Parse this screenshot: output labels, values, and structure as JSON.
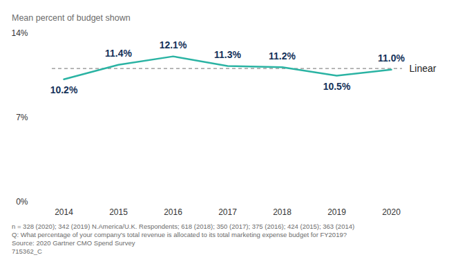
{
  "chart_data": {
    "type": "line",
    "ylabel": "Mean percent of budget shown",
    "categories": [
      "2014",
      "2015",
      "2016",
      "2017",
      "2018",
      "2019",
      "2020"
    ],
    "values": [
      10.2,
      11.4,
      12.1,
      11.3,
      11.2,
      10.5,
      11.0
    ],
    "value_labels": [
      "10.2%",
      "11.4%",
      "12.1%",
      "11.3%",
      "11.2%",
      "10.5%",
      "11.0%"
    ],
    "color": "#2ab3a3",
    "data_labels": true,
    "ylim": [
      0,
      14
    ],
    "yticks": [
      {
        "value": 0,
        "label": "0%"
      },
      {
        "value": 7,
        "label": "7%"
      },
      {
        "value": 14,
        "label": "14%"
      }
    ],
    "grid": false,
    "reference_line": {
      "label": "Linear",
      "value": 11.1,
      "line_style": "dashed",
      "color": "#8c8c8c"
    },
    "notes": [
      "n = 328 (2020); 342 (2019) N.America/U.K. Respondents; 618 (2018); 350 (2017); 375 (2016); 424 (2015); 363 (2014)",
      "Q: What percentage of your company's total revenue is allocated to its total marketing expense budget for FY2019?",
      "Source: 2020 Gartner CMO Spend Survey",
      "715362_C"
    ]
  }
}
